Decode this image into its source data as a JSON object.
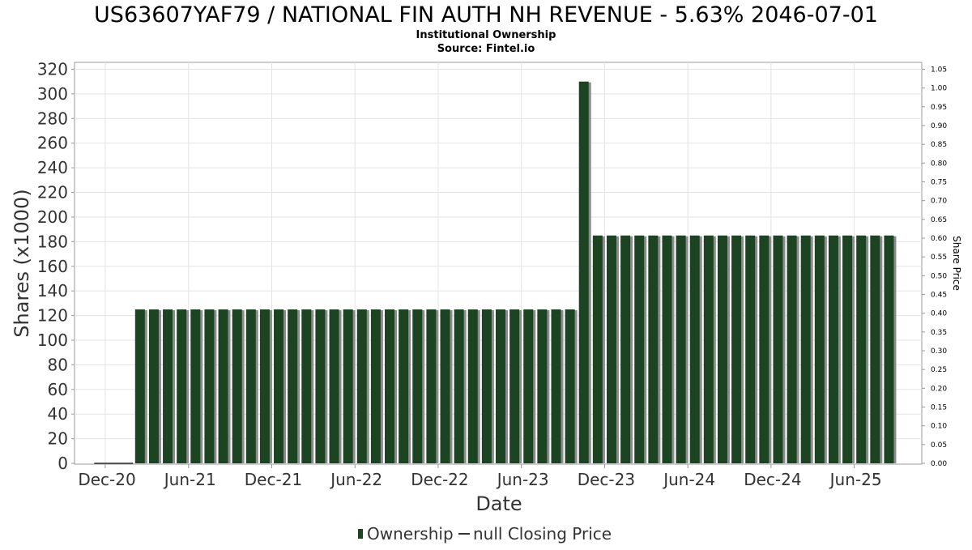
{
  "chart_data": {
    "type": "bar",
    "title": "US63607YAF79 / NATIONAL FIN AUTH NH REVENUE - 5.63% 2046-07-01",
    "subtitle": "Institutional Ownership",
    "source": "Source: Fintel.io",
    "xlabel": "Date",
    "ylabel": "Shares (x1000)",
    "y2label": "Share Price",
    "ylim": [
      0,
      320
    ],
    "y_ticks": [
      0,
      20,
      40,
      60,
      80,
      100,
      120,
      140,
      160,
      180,
      200,
      220,
      240,
      260,
      280,
      300,
      320
    ],
    "y2lim": [
      0,
      1.05
    ],
    "y2_ticks": [
      "0.00",
      "0.05",
      "0.10",
      "0.15",
      "0.20",
      "0.25",
      "0.30",
      "0.35",
      "0.40",
      "0.45",
      "0.50",
      "0.55",
      "0.60",
      "0.65",
      "0.70",
      "0.75",
      "0.80",
      "0.85",
      "0.90",
      "0.95",
      "1.00",
      "1.05"
    ],
    "x_tick_labels": [
      "Dec-20",
      "Jun-21",
      "Dec-21",
      "Jun-22",
      "Dec-22",
      "Jun-23",
      "Dec-23",
      "Jun-24",
      "Dec-24",
      "Jun-25"
    ],
    "x_range_months": [
      0,
      61
    ],
    "grid": true,
    "legend_position": "bottom-center",
    "series": [
      {
        "name": "Ownership",
        "color": "#1c4423",
        "shadow_color": "#8c8c8c",
        "x_months_from_dec20": [
          2.5,
          3.5,
          4.5,
          5.5,
          6.5,
          7.5,
          8.5,
          9.5,
          10.5,
          11.5,
          12.5,
          13.5,
          14.5,
          15.5,
          16.5,
          17.5,
          18.5,
          19.5,
          20.5,
          21.5,
          22.5,
          23.5,
          24.5,
          25.5,
          26.5,
          27.5,
          28.5,
          29.5,
          30.5,
          31.5,
          32.5,
          33.5,
          34.5,
          35.5,
          36.5,
          37.5,
          38.5,
          39.5,
          40.5,
          41.5,
          42.5,
          43.5,
          44.5,
          45.5,
          46.5,
          47.5,
          48.5,
          49.5,
          50.5,
          51.5,
          52.5,
          53.5,
          54.5,
          55.5,
          56.5
        ],
        "values": [
          125,
          125,
          125,
          125,
          125,
          125,
          125,
          125,
          125,
          125,
          125,
          125,
          125,
          125,
          125,
          125,
          125,
          125,
          125,
          125,
          125,
          125,
          125,
          125,
          125,
          125,
          125,
          125,
          125,
          125,
          125,
          125,
          310,
          185,
          185,
          185,
          185,
          185,
          185,
          185,
          185,
          185,
          185,
          185,
          185,
          185,
          185,
          185,
          185,
          185,
          185,
          185,
          185,
          185,
          185
        ]
      },
      {
        "name": "null Closing Price",
        "color": "#333333",
        "values": []
      }
    ],
    "line_baseline_end_month": 2
  }
}
